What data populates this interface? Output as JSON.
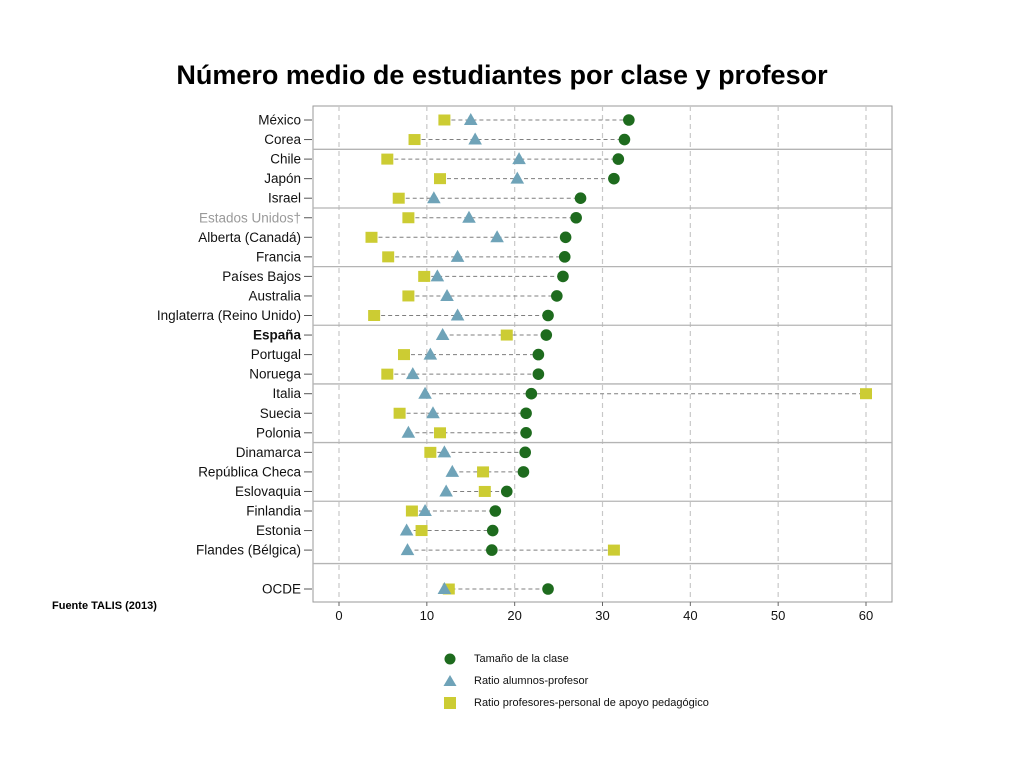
{
  "title": "Número medio de estudiantes por clase y profesor",
  "source": "Fuente TALIS (2013)",
  "colors": {
    "class_size": "#1e6b1e",
    "student_teacher": "#6fa3b8",
    "support_staff": "#cccc33",
    "grid": "#c8c8c8",
    "connector": "#7f7f7f",
    "separator": "#b4b4b4"
  },
  "chart_data": {
    "type": "scatter",
    "subtype": "dot-plot",
    "title": "",
    "xlabel": "",
    "ylabel": "",
    "xlim": [
      -2,
      63
    ],
    "xticks": [
      0,
      10,
      20,
      30,
      40,
      50,
      60
    ],
    "grid": "vertical dashed",
    "legend_position": "bottom",
    "categories": [
      "México",
      "Corea",
      "Chile",
      "Japón",
      "Israel",
      "Estados Unidos†",
      "Alberta (Canadá)",
      "Francia",
      "Países Bajos",
      "Australia",
      "Inglaterra (Reino Unido)",
      "España",
      "Portugal",
      "Noruega",
      "Italia",
      "Suecia",
      "Polonia",
      "Dinamarca",
      "República Checa",
      "Eslovaquia",
      "Finlandia",
      "Estonia",
      "Flandes (Bélgica)",
      "OCDE"
    ],
    "muted_categories": [
      "Estados Unidos†"
    ],
    "bold_categories": [
      "España"
    ],
    "group_separators_after": [
      "Corea",
      "Israel",
      "Francia",
      "Inglaterra (Reino Unido)",
      "Noruega",
      "Polonia",
      "Eslovaquia",
      "Flandes (Bélgica)"
    ],
    "series": [
      {
        "name": "Tamaño de la clase",
        "marker": "circle",
        "values": [
          33.0,
          32.5,
          31.8,
          31.3,
          27.5,
          27.0,
          25.8,
          25.7,
          25.5,
          24.8,
          23.8,
          23.6,
          22.7,
          22.7,
          21.9,
          21.3,
          21.3,
          21.2,
          21.0,
          19.1,
          17.8,
          17.5,
          17.4,
          23.8
        ]
      },
      {
        "name": "Ratio alumnos-profesor",
        "marker": "triangle",
        "values": [
          15.0,
          15.5,
          20.5,
          20.3,
          10.8,
          14.8,
          18.0,
          13.5,
          11.2,
          12.3,
          13.5,
          11.8,
          10.4,
          8.4,
          9.8,
          10.7,
          7.9,
          12.0,
          12.9,
          12.2,
          9.8,
          7.7,
          7.8,
          12.0
        ]
      },
      {
        "name": "Ratio profesores-personal de apoyo pedagógico",
        "marker": "square",
        "values": [
          12.0,
          8.6,
          5.5,
          11.5,
          6.8,
          7.9,
          3.7,
          5.6,
          9.7,
          7.9,
          4.0,
          19.1,
          7.4,
          5.5,
          60.0,
          6.9,
          11.5,
          10.4,
          16.4,
          16.6,
          8.3,
          9.4,
          31.3,
          12.5
        ]
      }
    ]
  }
}
